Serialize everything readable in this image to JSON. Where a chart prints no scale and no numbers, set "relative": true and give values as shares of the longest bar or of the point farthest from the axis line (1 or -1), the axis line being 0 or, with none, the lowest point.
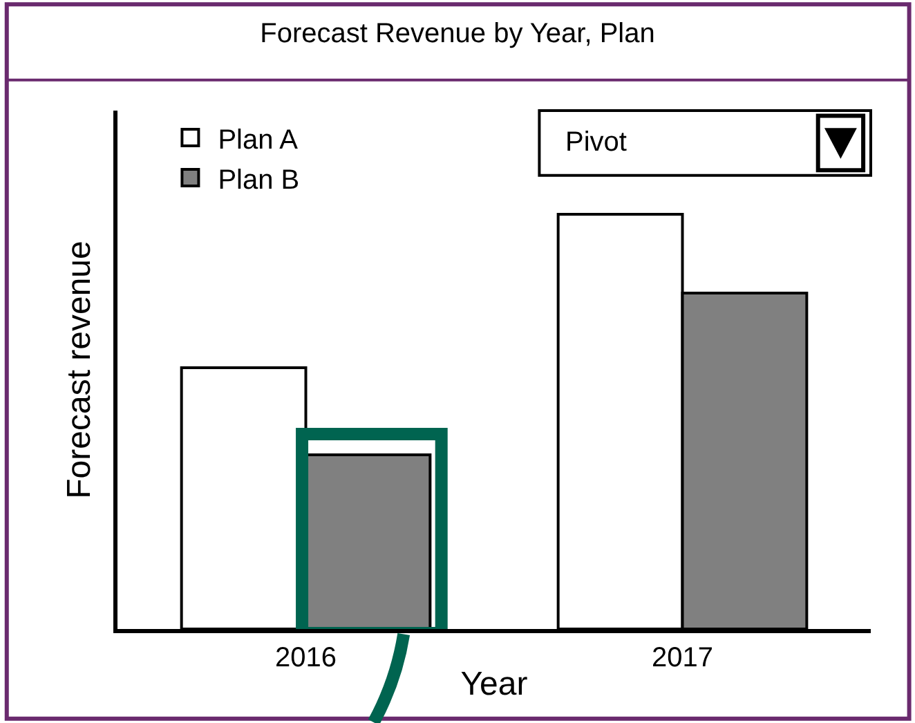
{
  "chart_data": {
    "type": "bar",
    "title": "Forecast Revenue by Year, Plan",
    "xlabel": "Year",
    "ylabel": "Forecast revenue",
    "categories": [
      "2016",
      "2017"
    ],
    "relative": true,
    "legend": "top left",
    "annotations": [
      "Pivot"
    ],
    "series": [
      {
        "name": "Plan A",
        "color": "#ffffff",
        "values": [
          0.63,
          1
        ]
      },
      {
        "name": "Plan B",
        "color": "#808080",
        "values": [
          0.42,
          0.81
        ]
      }
    ]
  }
}
